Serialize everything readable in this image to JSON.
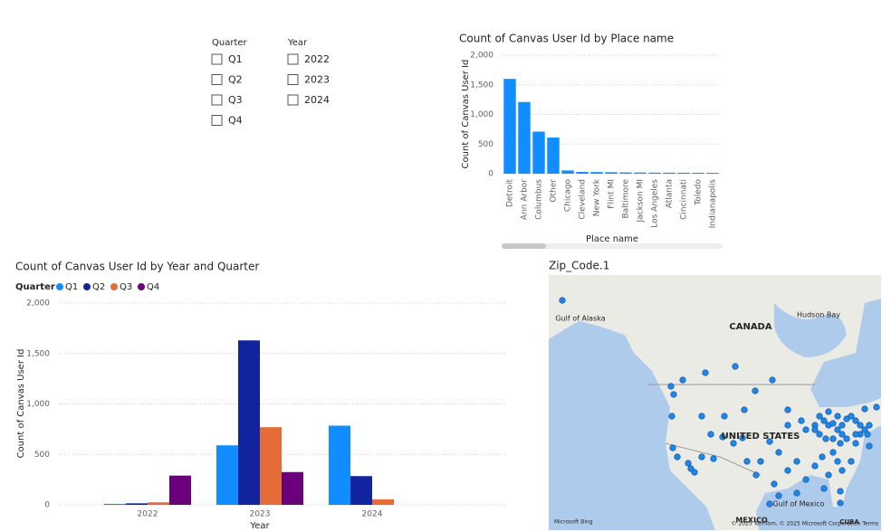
{
  "slicers": [
    {
      "title": "Quarter",
      "items": [
        "Q1",
        "Q2",
        "Q3",
        "Q4"
      ]
    },
    {
      "title": "Year",
      "items": [
        "2022",
        "2023",
        "2024"
      ]
    }
  ],
  "chart_data": [
    {
      "type": "bar",
      "title": "Count of Canvas User Id by Place name",
      "x_label": "Place name",
      "y_label": "Count of Canvas User Id",
      "categories": [
        "Detroit",
        "Ann Arbor",
        "Columbus",
        "Other",
        "Chicago",
        "Cleveland",
        "New York",
        "Flint MI",
        "Baltimore",
        "Jackson MI",
        "Los Angeles",
        "Atlanta",
        "Cincinnati",
        "Toledo",
        "Indianapolis"
      ],
      "values": [
        1600,
        1210,
        710,
        610,
        55,
        30,
        28,
        25,
        22,
        20,
        18,
        17,
        16,
        15,
        14
      ],
      "color": "#118dff",
      "ylim": [
        0,
        2000
      ],
      "yticks": [
        0,
        500,
        {
          "value": 1000,
          "label": "1,000"
        },
        {
          "value": 1500,
          "label": "1,500"
        },
        {
          "value": 2000,
          "label": "2,000"
        }
      ],
      "grid": true
    },
    {
      "type": "grouped_bar",
      "title": "Count of Canvas User Id by Year and Quarter",
      "x_label": "Year",
      "y_label": "Count of Canvas User Id",
      "legend_title": "Quarter",
      "categories": [
        "2022",
        "2023",
        "2024"
      ],
      "series": [
        {
          "name": "Q1",
          "color": "#118dff",
          "values": [
            10,
            590,
            785
          ]
        },
        {
          "name": "Q2",
          "color": "#12239e",
          "values": [
            15,
            1630,
            285
          ]
        },
        {
          "name": "Q3",
          "color": "#e66c37",
          "values": [
            25,
            770,
            55
          ]
        },
        {
          "name": "Q4",
          "color": "#6b007b",
          "values": [
            290,
            325,
            null
          ]
        }
      ],
      "ylim": [
        0,
        2000
      ],
      "yticks": [
        0,
        500,
        {
          "value": 1000,
          "label": "1,000"
        },
        {
          "value": 1500,
          "label": "1,500"
        },
        {
          "value": 2000,
          "label": "2,000"
        }
      ],
      "grid": true,
      "legend": "top-left"
    }
  ],
  "map": {
    "title": "Zip_Code.1",
    "labels": [
      "CANADA",
      "UNITED STATES",
      "Gulf of Alaska",
      "Hudson Bay",
      "Gulf of Mexico",
      "MEXICO",
      "CUBA"
    ],
    "brand": "Microsoft Bing",
    "credits": "© 2025 TomTom, © 2025 Microsoft Corporation Terms"
  }
}
